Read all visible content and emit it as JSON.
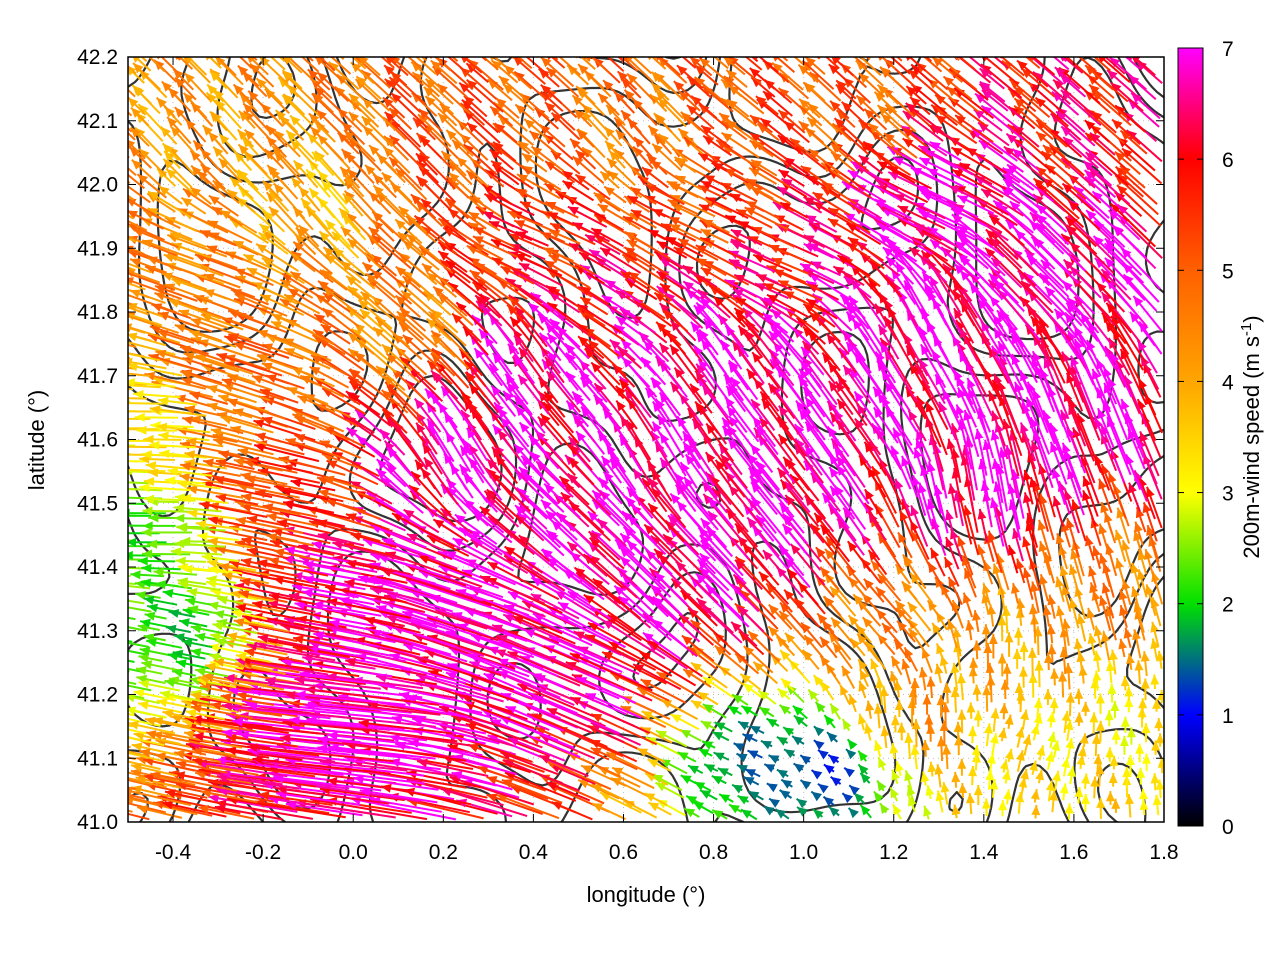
{
  "chart_data": {
    "type": "vector-field",
    "xlabel": "longitude (°)",
    "ylabel": "latitude (°)",
    "xlim": [
      -0.5,
      1.8
    ],
    "ylim": [
      41.0,
      42.2
    ],
    "xticks": [
      {
        "value": -0.4,
        "label": "-0.4"
      },
      {
        "value": -0.2,
        "label": "-0.2"
      },
      {
        "value": 0.0,
        "label": "0.0"
      },
      {
        "value": 0.2,
        "label": "0.2"
      },
      {
        "value": 0.4,
        "label": "0.4"
      },
      {
        "value": 0.6,
        "label": "0.6"
      },
      {
        "value": 0.8,
        "label": "0.8"
      },
      {
        "value": 1.0,
        "label": "1.0"
      },
      {
        "value": 1.2,
        "label": "1.2"
      },
      {
        "value": 1.4,
        "label": "1.4"
      },
      {
        "value": 1.6,
        "label": "1.6"
      },
      {
        "value": 1.8,
        "label": "1.8"
      }
    ],
    "yticks": [
      {
        "value": 41.0,
        "label": "41.0"
      },
      {
        "value": 41.1,
        "label": "41.1"
      },
      {
        "value": 41.2,
        "label": "41.2"
      },
      {
        "value": 41.3,
        "label": "41.3"
      },
      {
        "value": 41.4,
        "label": "41.4"
      },
      {
        "value": 41.5,
        "label": "41.5"
      },
      {
        "value": 41.6,
        "label": "41.6"
      },
      {
        "value": 41.7,
        "label": "41.7"
      },
      {
        "value": 41.8,
        "label": "41.8"
      },
      {
        "value": 41.9,
        "label": "41.9"
      },
      {
        "value": 42.0,
        "label": "42.0"
      },
      {
        "value": 42.1,
        "label": "42.1"
      },
      {
        "value": 42.2,
        "label": "42.2"
      }
    ],
    "grid": "dotted",
    "colorbar": {
      "label_main": "200m-wind speed (m s",
      "label_sup": "-1",
      "label_end": ")",
      "range": [
        0,
        7
      ],
      "ticks": [
        {
          "value": 0,
          "label": "0"
        },
        {
          "value": 1,
          "label": "1"
        },
        {
          "value": 2,
          "label": "2"
        },
        {
          "value": 3,
          "label": "3"
        },
        {
          "value": 4,
          "label": "4"
        },
        {
          "value": 5,
          "label": "5"
        },
        {
          "value": 6,
          "label": "6"
        },
        {
          "value": 7,
          "label": "7"
        }
      ],
      "palette": [
        {
          "value": 0.0,
          "color": "#000000"
        },
        {
          "value": 1.0,
          "color": "#0000ff"
        },
        {
          "value": 2.0,
          "color": "#00e000"
        },
        {
          "value": 3.0,
          "color": "#ffff00"
        },
        {
          "value": 4.0,
          "color": "#ffa500"
        },
        {
          "value": 5.0,
          "color": "#ff6000"
        },
        {
          "value": 6.0,
          "color": "#ff0000"
        },
        {
          "value": 7.0,
          "color": "#ff00ff"
        }
      ]
    },
    "contour_color": "#333333",
    "vectors": [
      {
        "x": -0.45,
        "y": 41.62,
        "u": -0.11,
        "v": 0.0,
        "s": 3.2
      },
      {
        "x": -0.4,
        "y": 41.45,
        "u": -0.1,
        "v": 0.0,
        "s": 2.2
      },
      {
        "x": -0.35,
        "y": 41.3,
        "u": -0.07,
        "v": 0.01,
        "s": 2.0
      },
      {
        "x": -0.3,
        "y": 41.85,
        "u": -0.12,
        "v": 0.03,
        "s": 4.5
      },
      {
        "x": -0.3,
        "y": 42.05,
        "u": -0.05,
        "v": 0.04,
        "s": 4.2
      },
      {
        "x": -0.2,
        "y": 41.7,
        "u": -0.13,
        "v": 0.03,
        "s": 4.8
      },
      {
        "x": -0.1,
        "y": 41.5,
        "u": -0.14,
        "v": 0.02,
        "s": 5.4
      },
      {
        "x": -0.05,
        "y": 41.95,
        "u": -0.06,
        "v": 0.05,
        "s": 3.8
      },
      {
        "x": 0.05,
        "y": 41.35,
        "u": -0.16,
        "v": 0.02,
        "s": 6.8
      },
      {
        "x": 0.1,
        "y": 41.15,
        "u": -0.3,
        "v": 0.02,
        "s": 7.0
      },
      {
        "x": 0.15,
        "y": 41.75,
        "u": -0.08,
        "v": 0.05,
        "s": 4.3
      },
      {
        "x": 0.2,
        "y": 42.0,
        "u": -0.07,
        "v": 0.05,
        "s": 5.1
      },
      {
        "x": 0.25,
        "y": 41.55,
        "u": -0.06,
        "v": 0.07,
        "s": 7.0
      },
      {
        "x": 0.3,
        "y": 41.3,
        "u": -0.22,
        "v": 0.05,
        "s": 7.0
      },
      {
        "x": 0.4,
        "y": 41.7,
        "u": -0.06,
        "v": 0.06,
        "s": 7.0
      },
      {
        "x": 0.45,
        "y": 41.9,
        "u": -0.1,
        "v": 0.03,
        "s": 5.6
      },
      {
        "x": 0.5,
        "y": 41.45,
        "u": -0.09,
        "v": 0.06,
        "s": 7.0
      },
      {
        "x": 0.55,
        "y": 41.2,
        "u": -0.2,
        "v": 0.06,
        "s": 7.0
      },
      {
        "x": 0.6,
        "y": 41.8,
        "u": -0.09,
        "v": 0.04,
        "s": 6.2
      },
      {
        "x": 0.65,
        "y": 42.05,
        "u": -0.05,
        "v": 0.04,
        "s": 4.6
      },
      {
        "x": 0.7,
        "y": 41.55,
        "u": -0.05,
        "v": 0.06,
        "s": 7.0
      },
      {
        "x": 0.75,
        "y": 41.35,
        "u": -0.1,
        "v": 0.07,
        "s": 7.0
      },
      {
        "x": 0.8,
        "y": 41.95,
        "u": -0.09,
        "v": 0.03,
        "s": 5.2
      },
      {
        "x": 0.85,
        "y": 41.7,
        "u": -0.06,
        "v": 0.06,
        "s": 7.0
      },
      {
        "x": 0.9,
        "y": 41.1,
        "u": -0.03,
        "v": 0.01,
        "s": 1.5
      },
      {
        "x": 0.95,
        "y": 41.45,
        "u": -0.08,
        "v": 0.07,
        "s": 7.0
      },
      {
        "x": 1.0,
        "y": 41.85,
        "u": -0.1,
        "v": 0.03,
        "s": 6.1
      },
      {
        "x": 1.05,
        "y": 41.08,
        "u": -0.02,
        "v": 0.01,
        "s": 1.2
      },
      {
        "x": 1.1,
        "y": 41.6,
        "u": -0.07,
        "v": 0.07,
        "s": 7.0
      },
      {
        "x": 1.15,
        "y": 42.1,
        "u": -0.06,
        "v": 0.04,
        "s": 5.0
      },
      {
        "x": 1.2,
        "y": 41.3,
        "u": -0.05,
        "v": 0.04,
        "s": 4.5
      },
      {
        "x": 1.25,
        "y": 41.15,
        "u": 0.0,
        "v": 0.04,
        "s": 4.2
      },
      {
        "x": 1.3,
        "y": 41.75,
        "u": -0.06,
        "v": 0.08,
        "s": 7.0
      },
      {
        "x": 1.35,
        "y": 41.95,
        "u": -0.12,
        "v": 0.04,
        "s": 7.0
      },
      {
        "x": 1.4,
        "y": 41.5,
        "u": -0.02,
        "v": 0.08,
        "s": 7.0
      },
      {
        "x": 1.45,
        "y": 41.25,
        "u": 0.0,
        "v": 0.04,
        "s": 4.0
      },
      {
        "x": 1.5,
        "y": 41.1,
        "u": 0.01,
        "v": 0.03,
        "s": 3.3
      },
      {
        "x": 1.55,
        "y": 41.85,
        "u": -0.1,
        "v": 0.07,
        "s": 7.0
      },
      {
        "x": 1.6,
        "y": 41.6,
        "u": -0.05,
        "v": 0.09,
        "s": 7.0
      },
      {
        "x": 1.65,
        "y": 42.05,
        "u": -0.08,
        "v": 0.05,
        "s": 6.0
      },
      {
        "x": 1.7,
        "y": 41.35,
        "u": -0.02,
        "v": 0.05,
        "s": 4.5
      },
      {
        "x": 1.75,
        "y": 41.15,
        "u": 0.0,
        "v": 0.03,
        "s": 3.2
      }
    ]
  }
}
